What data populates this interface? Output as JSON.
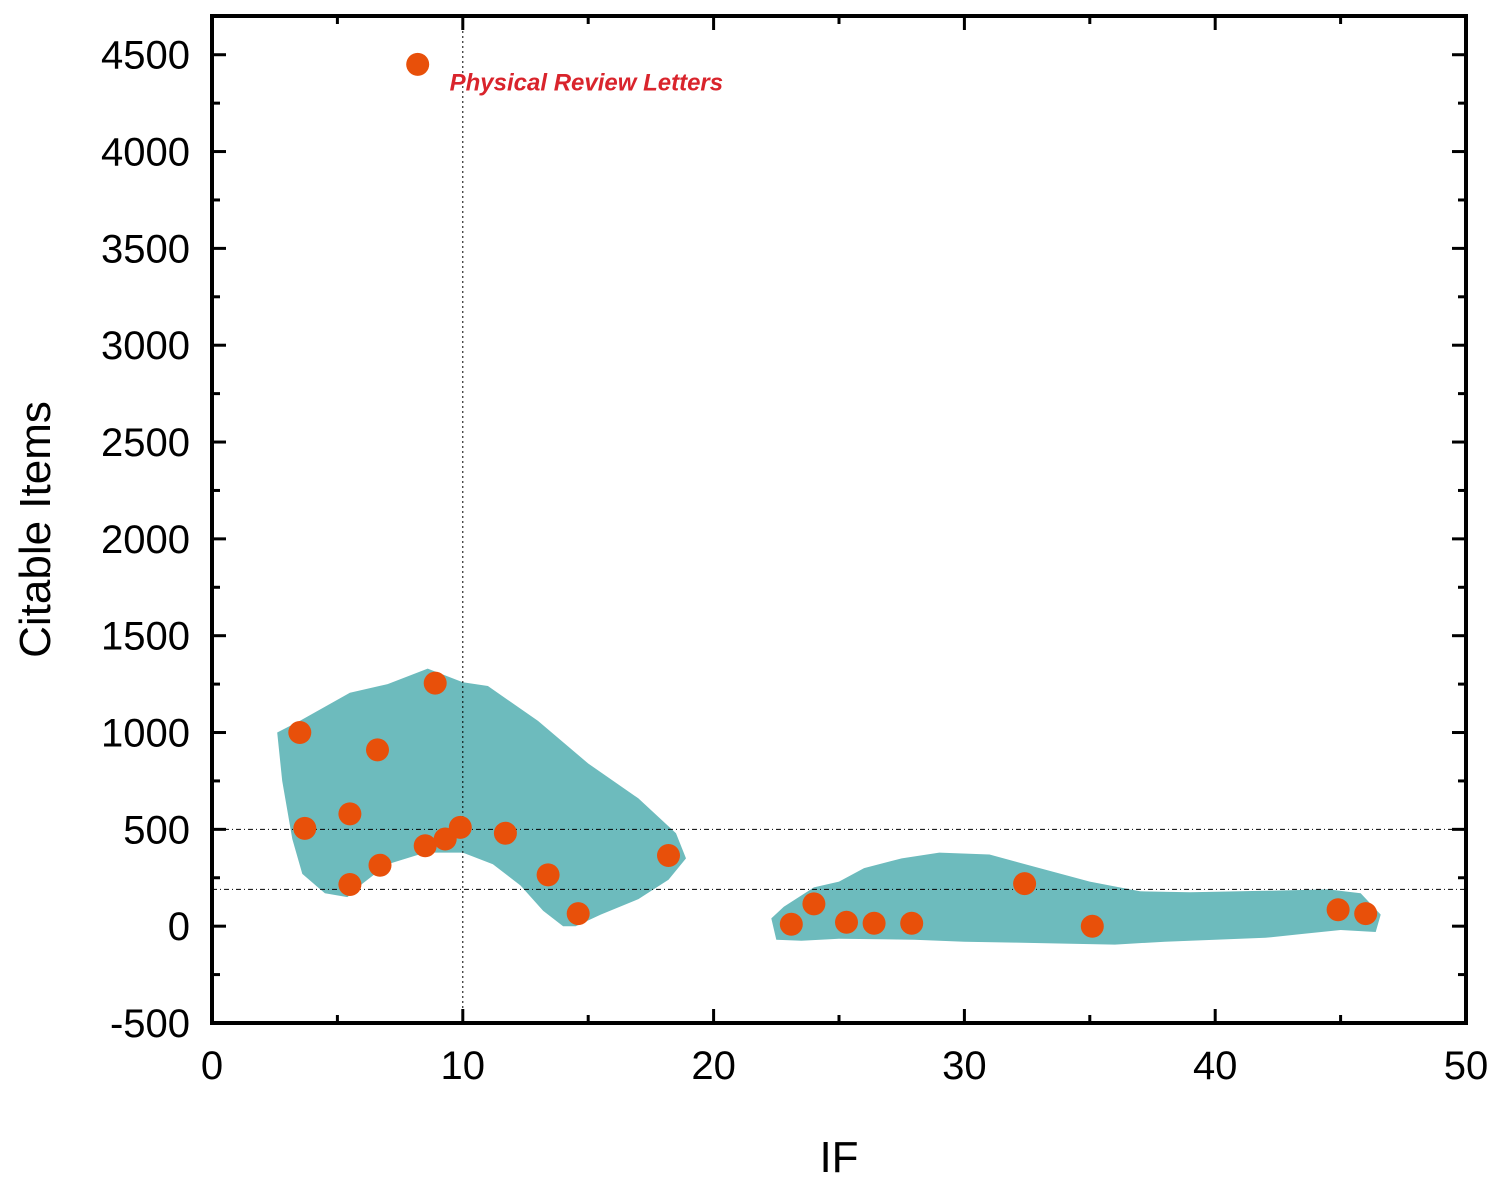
{
  "chart_data": {
    "type": "scatter",
    "xlabel": "IF",
    "ylabel": "Citable Items",
    "xlim": [
      0,
      50
    ],
    "ylim": [
      -500,
      4700
    ],
    "x_ticks": [
      "0",
      "10",
      "20",
      "30",
      "40",
      "50"
    ],
    "y_ticks": [
      "-500",
      "0",
      "500",
      "1000",
      "1500",
      "2000",
      "2500",
      "3000",
      "3500",
      "4000",
      "4500"
    ],
    "grid": false,
    "reference_lines": {
      "vertical_x": [
        10
      ],
      "horizontal_y": [
        500,
        190
      ]
    },
    "point_color": "#E8500A",
    "region_color": "#6DBBBD",
    "annotation": {
      "text": "Physical Review Letters",
      "color": "#D9242C",
      "x": 8.2,
      "y": 4450
    },
    "points": [
      {
        "x": 8.2,
        "y": 4450
      },
      {
        "x": 3.5,
        "y": 1000
      },
      {
        "x": 3.7,
        "y": 505
      },
      {
        "x": 5.5,
        "y": 580
      },
      {
        "x": 5.5,
        "y": 215
      },
      {
        "x": 6.6,
        "y": 910
      },
      {
        "x": 6.7,
        "y": 315
      },
      {
        "x": 8.5,
        "y": 415
      },
      {
        "x": 8.9,
        "y": 1255
      },
      {
        "x": 9.3,
        "y": 450
      },
      {
        "x": 9.9,
        "y": 510
      },
      {
        "x": 11.7,
        "y": 480
      },
      {
        "x": 13.4,
        "y": 265
      },
      {
        "x": 14.6,
        "y": 65
      },
      {
        "x": 18.2,
        "y": 365
      },
      {
        "x": 23.1,
        "y": 10
      },
      {
        "x": 24.0,
        "y": 115
      },
      {
        "x": 25.3,
        "y": 20
      },
      {
        "x": 26.4,
        "y": 15
      },
      {
        "x": 27.9,
        "y": 15
      },
      {
        "x": 32.4,
        "y": 220
      },
      {
        "x": 35.1,
        "y": 0
      },
      {
        "x": 44.9,
        "y": 85
      },
      {
        "x": 46.0,
        "y": 65
      }
    ],
    "regions": [
      [
        [
          2.6,
          1000
        ],
        [
          3.5,
          1060
        ],
        [
          5.5,
          1205
        ],
        [
          7.0,
          1250
        ],
        [
          8.6,
          1330
        ],
        [
          10.0,
          1260
        ],
        [
          11.0,
          1240
        ],
        [
          13.0,
          1060
        ],
        [
          15.0,
          840
        ],
        [
          17.0,
          660
        ],
        [
          18.5,
          480
        ],
        [
          18.9,
          350
        ],
        [
          18.2,
          240
        ],
        [
          17.0,
          140
        ],
        [
          15.5,
          60
        ],
        [
          14.5,
          0
        ],
        [
          14.0,
          0
        ],
        [
          13.2,
          80
        ],
        [
          12.3,
          210
        ],
        [
          11.2,
          320
        ],
        [
          10.0,
          380
        ],
        [
          8.5,
          380
        ],
        [
          7.0,
          320
        ],
        [
          6.0,
          220
        ],
        [
          5.4,
          150
        ],
        [
          4.5,
          170
        ],
        [
          3.6,
          270
        ],
        [
          3.2,
          450
        ],
        [
          2.8,
          750
        ]
      ],
      [
        [
          22.5,
          -70
        ],
        [
          22.3,
          40
        ],
        [
          22.8,
          100
        ],
        [
          24.0,
          200
        ],
        [
          25.0,
          230
        ],
        [
          26.0,
          300
        ],
        [
          27.5,
          350
        ],
        [
          29.0,
          380
        ],
        [
          31.0,
          370
        ],
        [
          33.0,
          300
        ],
        [
          35.0,
          230
        ],
        [
          37.0,
          180
        ],
        [
          39.0,
          175
        ],
        [
          41.0,
          180
        ],
        [
          43.0,
          185
        ],
        [
          44.5,
          190
        ],
        [
          45.8,
          170
        ],
        [
          46.6,
          60
        ],
        [
          46.4,
          -30
        ],
        [
          45.0,
          -20
        ],
        [
          43.5,
          -40
        ],
        [
          42.0,
          -60
        ],
        [
          40.0,
          -70
        ],
        [
          38.0,
          -80
        ],
        [
          36.0,
          -95
        ],
        [
          34.0,
          -90
        ],
        [
          32.0,
          -85
        ],
        [
          30.0,
          -80
        ],
        [
          28.0,
          -70
        ],
        [
          25.0,
          -65
        ],
        [
          23.5,
          -75
        ]
      ]
    ]
  }
}
